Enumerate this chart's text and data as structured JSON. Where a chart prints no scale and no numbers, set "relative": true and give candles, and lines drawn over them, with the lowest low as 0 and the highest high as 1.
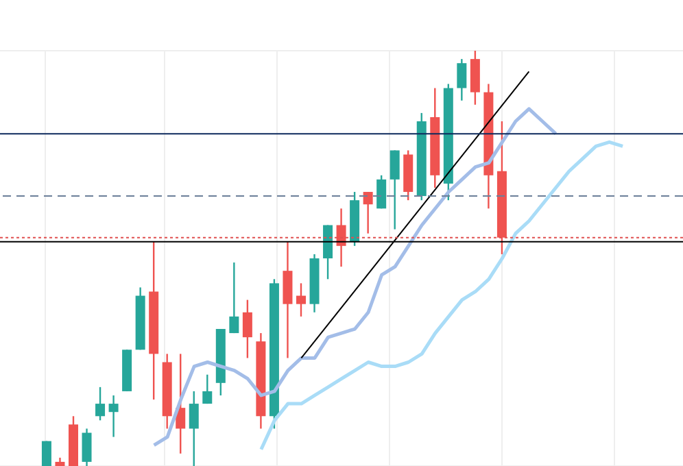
{
  "chart_data": {
    "type": "candlestick",
    "relative": true,
    "grid": true,
    "marker": "none",
    "categories": [
      null,
      null,
      null,
      null,
      null,
      null,
      null,
      null,
      null,
      null,
      null,
      null,
      null,
      null,
      null,
      null,
      null,
      null,
      null,
      null,
      null,
      null,
      null,
      null,
      null,
      null,
      null,
      null,
      null,
      null,
      null,
      null,
      null,
      null,
      null,
      null,
      null,
      null,
      null,
      null,
      null,
      null,
      null,
      null,
      null,
      null,
      null,
      null,
      null,
      null,
      null
    ],
    "ohlc": [
      null,
      null,
      null,
      [
        0,
        0.06,
        0,
        0.06
      ],
      [
        0.01,
        0.02,
        0,
        0
      ],
      [
        0.1,
        0.12,
        0,
        0
      ],
      [
        0.01,
        0.09,
        0,
        0.08
      ],
      [
        0.12,
        0.19,
        0.11,
        0.15
      ],
      [
        0.13,
        0.17,
        0.07,
        0.15
      ],
      [
        0.18,
        0.28,
        0.18,
        0.28
      ],
      [
        0.28,
        0.43,
        0.28,
        0.41
      ],
      [
        0.42,
        0.54,
        0.16,
        0.27
      ],
      [
        0.25,
        0.27,
        0.09,
        0.12
      ],
      [
        0.14,
        0.27,
        0.03,
        0.09
      ],
      [
        0.09,
        0.18,
        0,
        0.15
      ],
      [
        0.15,
        0.22,
        0.15,
        0.18
      ],
      [
        0.2,
        0.33,
        0.17,
        0.33
      ],
      [
        0.32,
        0.49,
        0.32,
        0.36
      ],
      [
        0.37,
        0.4,
        0.26,
        0.31
      ],
      [
        0.3,
        0.32,
        0.09,
        0.12
      ],
      [
        0.12,
        0.45,
        0.09,
        0.44
      ],
      [
        0.47,
        0.54,
        0.26,
        0.39
      ],
      [
        0.41,
        0.44,
        0.36,
        0.39
      ],
      [
        0.39,
        0.51,
        0.37,
        0.5
      ],
      [
        0.5,
        0.58,
        0.45,
        0.58
      ],
      [
        0.58,
        0.62,
        0.48,
        0.53
      ],
      [
        0.54,
        0.66,
        0.53,
        0.64
      ],
      [
        0.66,
        0.66,
        0.56,
        0.63
      ],
      [
        0.62,
        0.7,
        0.62,
        0.69
      ],
      [
        0.69,
        0.76,
        0.57,
        0.76
      ],
      [
        0.75,
        0.76,
        0.64,
        0.66
      ],
      [
        0.65,
        0.85,
        0.64,
        0.83
      ],
      [
        0.84,
        0.91,
        0.67,
        0.7
      ],
      [
        0.68,
        0.92,
        0.64,
        0.91
      ],
      [
        0.91,
        0.98,
        0.88,
        0.97
      ],
      [
        0.98,
        1,
        0.87,
        0.9
      ],
      [
        0.9,
        0.92,
        0.62,
        0.7
      ],
      [
        0.71,
        0.83,
        0.51,
        0.55
      ],
      null,
      null,
      null,
      null,
      null,
      null,
      null,
      null,
      null,
      null,
      null,
      null,
      null
    ],
    "colors": [
      null,
      null,
      null,
      "#26a69a",
      "#ef5350",
      "#ef5350",
      "#26a69a",
      "#26a69a",
      "#26a69a",
      "#26a69a",
      "#26a69a",
      "#ef5350",
      "#ef5350",
      "#ef5350",
      "#26a69a",
      "#26a69a",
      "#26a69a",
      "#26a69a",
      "#ef5350",
      "#ef5350",
      "#26a69a",
      "#ef5350",
      "#ef5350",
      "#26a69a",
      "#26a69a",
      "#ef5350",
      "#26a69a",
      "#ef5350",
      "#26a69a",
      "#26a69a",
      "#ef5350",
      "#26a69a",
      "#ef5350",
      "#26a69a",
      "#26a69a",
      "#ef5350",
      "#ef5350",
      "#ef5350",
      null,
      null,
      null,
      null,
      null,
      null,
      null,
      null,
      null,
      null,
      null,
      null,
      null
    ],
    "series": [
      {
        "type": "line",
        "color": "#a3bde8",
        "values": [
          null,
          null,
          null,
          null,
          null,
          null,
          null,
          null,
          null,
          null,
          null,
          0.05,
          0.07,
          0.16,
          0.24,
          0.25,
          0.24,
          0.23,
          0.21,
          0.17,
          0.18,
          0.23,
          0.26,
          0.26,
          0.31,
          0.32,
          0.33,
          0.37,
          0.46,
          0.48,
          0.53,
          0.58,
          0.62,
          0.66,
          0.69,
          0.72,
          0.73,
          0.78,
          0.83,
          0.86,
          0.83,
          0.8,
          null,
          null,
          null,
          null,
          null,
          null,
          null,
          null,
          null
        ]
      },
      {
        "type": "line",
        "color": "#a9dcf7",
        "values": [
          null,
          null,
          null,
          null,
          null,
          null,
          null,
          null,
          null,
          null,
          null,
          null,
          null,
          null,
          null,
          null,
          null,
          null,
          null,
          0.04,
          0.11,
          0.15,
          0.15,
          0.17,
          0.19,
          0.21,
          0.23,
          0.25,
          0.24,
          0.24,
          0.25,
          0.27,
          0.32,
          0.36,
          0.4,
          0.42,
          0.45,
          0.5,
          0.56,
          0.59,
          0.63,
          0.67,
          0.71,
          0.74,
          0.77,
          0.78,
          0.77,
          null,
          null,
          null,
          null
        ]
      },
      {
        "type": "line",
        "color": "#000000",
        "values": [
          null,
          null,
          null,
          null,
          null,
          null,
          null,
          null,
          null,
          null,
          null,
          null,
          null,
          null,
          null,
          null,
          null,
          null,
          null,
          null,
          null,
          null,
          0.26,
          null,
          null,
          null,
          null,
          null,
          null,
          null,
          null,
          null,
          null,
          null,
          null,
          null,
          null,
          null,
          null,
          0.95,
          null,
          null,
          null,
          null,
          null,
          null,
          null,
          null,
          null,
          null,
          null
        ]
      }
    ],
    "ref_lines": [
      {
        "axis": "y",
        "value": 0.8,
        "color": "#0d2a5c",
        "line_style": "solid"
      },
      {
        "axis": "y",
        "value": 0.65,
        "color": "#6b7f99",
        "line_style": "dashed"
      },
      {
        "axis": "y",
        "value": 0.55,
        "color": "#e05050",
        "line_style": "dotted"
      },
      {
        "axis": "y",
        "value": 0.54,
        "color": "#000000",
        "line_style": "solid"
      }
    ]
  }
}
